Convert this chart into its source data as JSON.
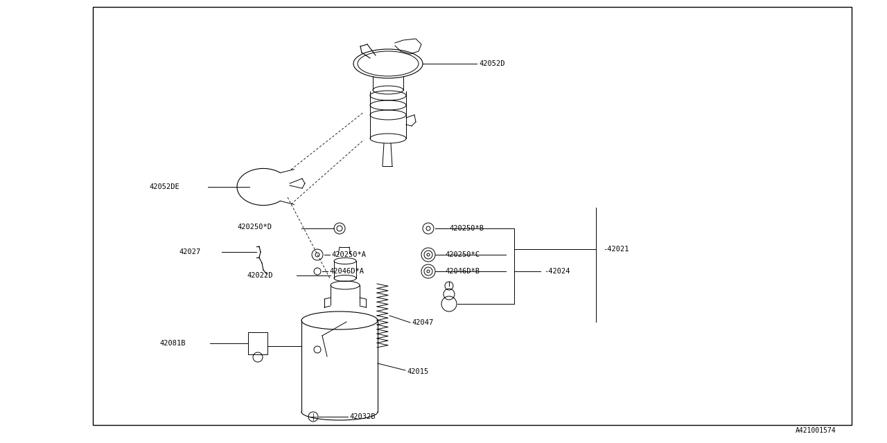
{
  "bg_color": "#ffffff",
  "line_color": "#000000",
  "text_color": "#000000",
  "font_family": "monospace",
  "diagram_id": "A421001574",
  "border": [
    0.105,
    0.04,
    0.855,
    0.945
  ],
  "fig_w": 12.8,
  "fig_h": 6.4,
  "font_sz": 7.5
}
